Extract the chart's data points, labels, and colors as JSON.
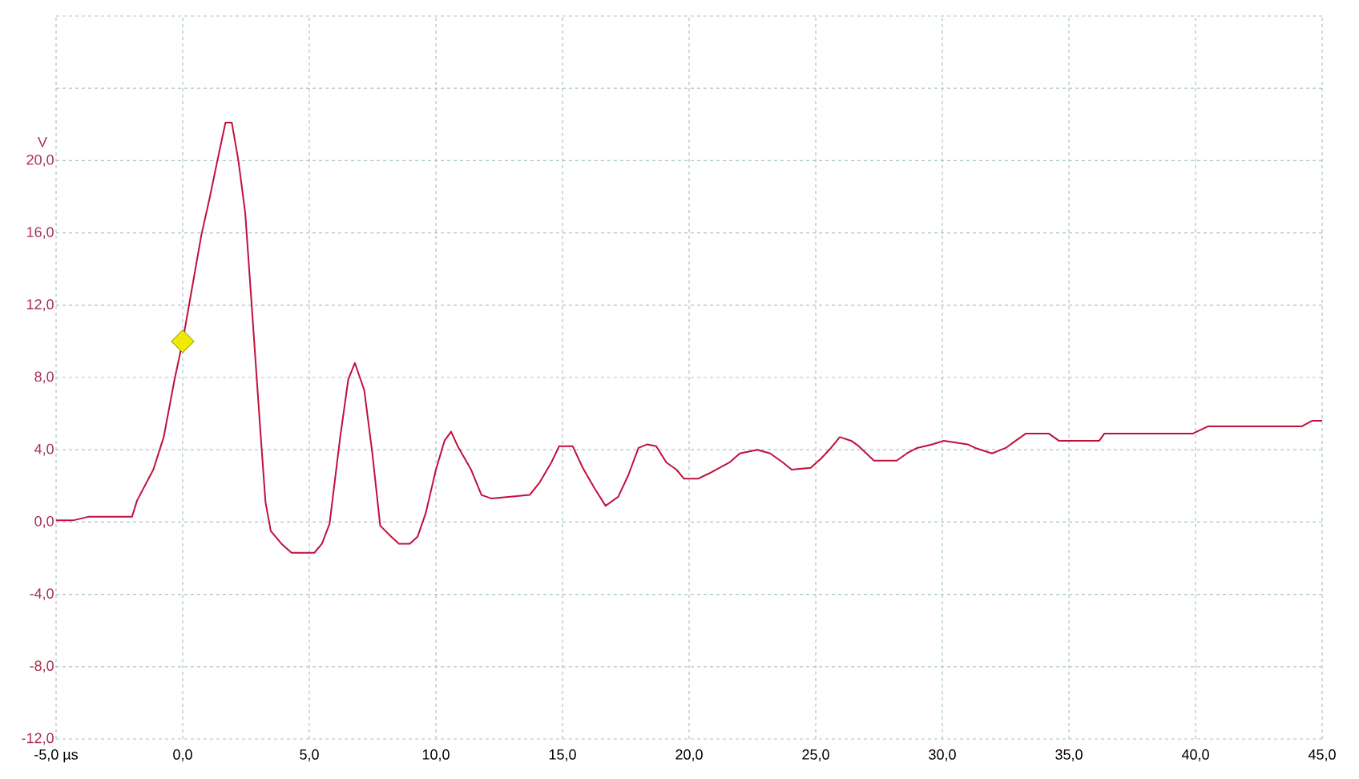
{
  "chart_data": {
    "type": "line",
    "ylabel": "V",
    "xlim": [
      -5,
      45
    ],
    "ylim": [
      -12,
      28
    ],
    "xticks": [
      {
        "value": -5,
        "label": "-5,0 µs"
      },
      {
        "value": 0,
        "label": "0,0"
      },
      {
        "value": 5,
        "label": "5,0"
      },
      {
        "value": 10,
        "label": "10,0"
      },
      {
        "value": 15,
        "label": "15,0"
      },
      {
        "value": 20,
        "label": "20,0"
      },
      {
        "value": 25,
        "label": "25,0"
      },
      {
        "value": 30,
        "label": "30,0"
      },
      {
        "value": 35,
        "label": "35,0"
      },
      {
        "value": 40,
        "label": "40,0"
      },
      {
        "value": 45,
        "label": "45,0"
      }
    ],
    "yticks": [
      {
        "value": -12,
        "label": "-12,0"
      },
      {
        "value": -8,
        "label": "-8,0"
      },
      {
        "value": -4,
        "label": "-4,0"
      },
      {
        "value": 0,
        "label": "0,0"
      },
      {
        "value": 4,
        "label": "4,0"
      },
      {
        "value": 8,
        "label": "8,0"
      },
      {
        "value": 12,
        "label": "12,0"
      },
      {
        "value": 16,
        "label": "16,0"
      },
      {
        "value": 20,
        "label": "20,0"
      },
      {
        "value": 24,
        "label": null
      },
      {
        "value": 28,
        "label": null
      }
    ],
    "grid": true,
    "series": [
      {
        "color": "#c0103c",
        "marker": "none",
        "x": [
          -5,
          -4.3,
          -3.7,
          -2.0,
          -1.8,
          -1.16,
          -0.75,
          -0.32,
          0,
          0.25,
          0.74,
          1.06,
          1.37,
          1.69,
          1.94,
          2.2,
          2.47,
          2.74,
          3.06,
          3.27,
          3.48,
          3.9,
          4.3,
          5.2,
          5.5,
          5.8,
          6.22,
          6.54,
          6.8,
          7.17,
          7.49,
          7.8,
          8.23,
          8.54,
          8.97,
          9.28,
          9.6,
          10.0,
          10.34,
          10.6,
          10.86,
          11.39,
          11.8,
          12.2,
          13.7,
          14.1,
          14.56,
          14.87,
          15.4,
          15.8,
          16.25,
          16.7,
          17.2,
          17.6,
          18.0,
          18.35,
          18.7,
          19.1,
          19.5,
          19.8,
          20.35,
          20.8,
          21.2,
          21.6,
          22.0,
          22.7,
          23.2,
          23.7,
          24.05,
          24.8,
          25.2,
          25.6,
          25.95,
          26.4,
          26.7,
          27.0,
          27.3,
          28.2,
          28.6,
          29.0,
          29.6,
          30.06,
          31.0,
          31.3,
          31.96,
          32.5,
          32.9,
          33.3,
          34.2,
          34.6,
          36.2,
          36.4,
          39.9,
          40.5,
          44.2,
          44.6,
          45
        ],
        "values": [
          0.1,
          0.1,
          0.3,
          0.3,
          1.2,
          2.9,
          4.7,
          7.9,
          10.0,
          12.0,
          15.9,
          17.9,
          20.0,
          22.1,
          22.1,
          20.0,
          17.1,
          11.7,
          5.2,
          1.1,
          -0.5,
          -1.2,
          -1.7,
          -1.7,
          -1.2,
          -0.1,
          4.7,
          7.9,
          8.8,
          7.3,
          3.8,
          -0.2,
          -0.8,
          -1.2,
          -1.2,
          -0.8,
          0.5,
          2.9,
          4.5,
          5.0,
          4.2,
          2.9,
          1.5,
          1.3,
          1.5,
          2.2,
          3.3,
          4.2,
          4.2,
          3.0,
          1.9,
          0.9,
          1.4,
          2.6,
          4.1,
          4.3,
          4.2,
          3.3,
          2.9,
          2.4,
          2.4,
          2.7,
          3.0,
          3.3,
          3.8,
          4.0,
          3.8,
          3.3,
          2.9,
          3.0,
          3.5,
          4.1,
          4.7,
          4.5,
          4.2,
          3.8,
          3.4,
          3.4,
          3.8,
          4.1,
          4.3,
          4.5,
          4.3,
          4.1,
          3.8,
          4.1,
          4.5,
          4.9,
          4.9,
          4.5,
          4.5,
          4.9,
          4.9,
          5.3,
          5.3,
          5.6,
          5.6
        ]
      },
      {
        "type": "scatter",
        "color": "#f0ea00",
        "marker": "diamond",
        "x": [
          0
        ],
        "values": [
          10
        ]
      }
    ]
  }
}
